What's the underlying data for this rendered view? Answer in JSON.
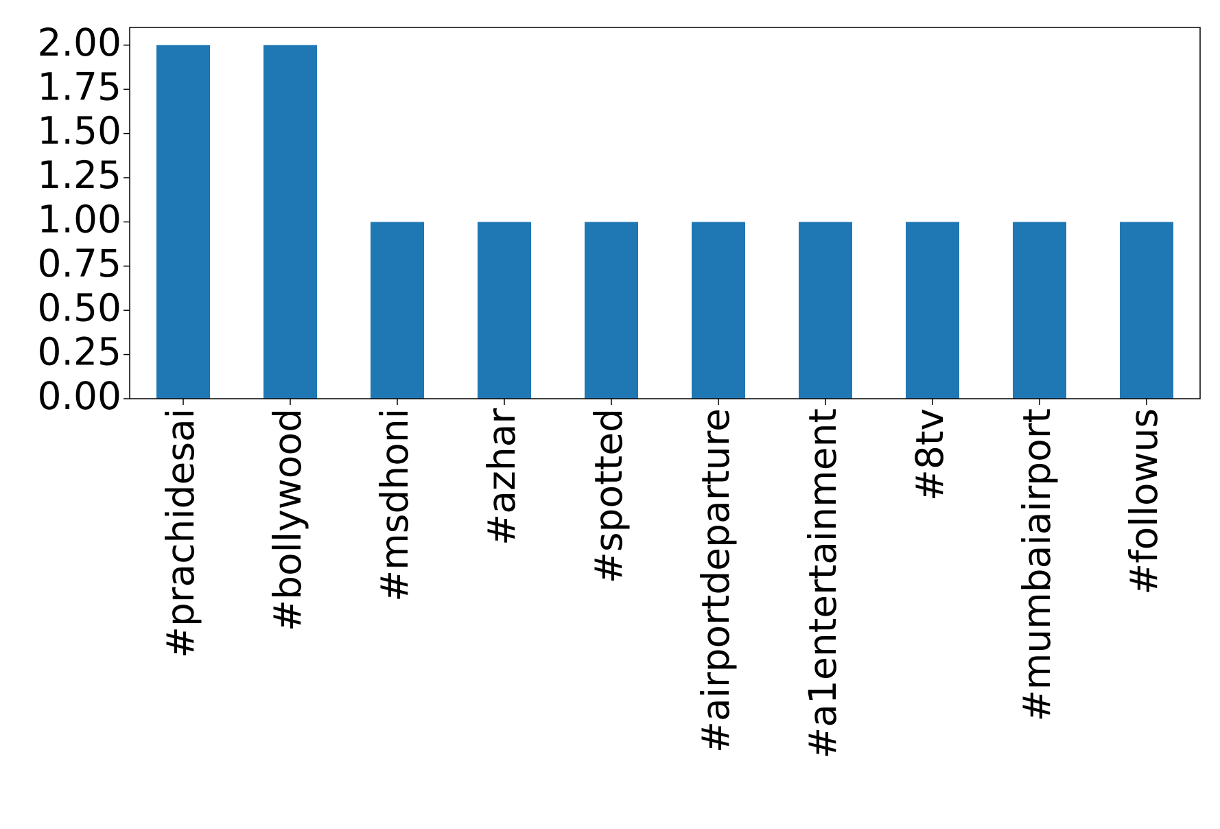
{
  "chart_data": {
    "type": "bar",
    "categories": [
      "#prachidesai",
      "#bollywood",
      "#msdhoni",
      "#azhar",
      "#spotted",
      "#airportdeparture",
      "#a1entertainment",
      "#8tv",
      "#mumbaiairport",
      "#followus"
    ],
    "values": [
      2,
      2,
      1,
      1,
      1,
      1,
      1,
      1,
      1,
      1
    ],
    "color": "#1f77b4",
    "ylim": [
      0,
      2.1
    ],
    "yticks": [
      {
        "value": 0,
        "label": "0.00"
      },
      {
        "value": 0.25,
        "label": "0.25"
      },
      {
        "value": 0.5,
        "label": "0.50"
      },
      {
        "value": 0.75,
        "label": "0.75"
      },
      {
        "value": 1,
        "label": "1.00"
      },
      {
        "value": 1.25,
        "label": "1.25"
      },
      {
        "value": 1.5,
        "label": "1.50"
      },
      {
        "value": 1.75,
        "label": "1.75"
      },
      {
        "value": 2,
        "label": "2.00"
      }
    ],
    "grid": false
  }
}
